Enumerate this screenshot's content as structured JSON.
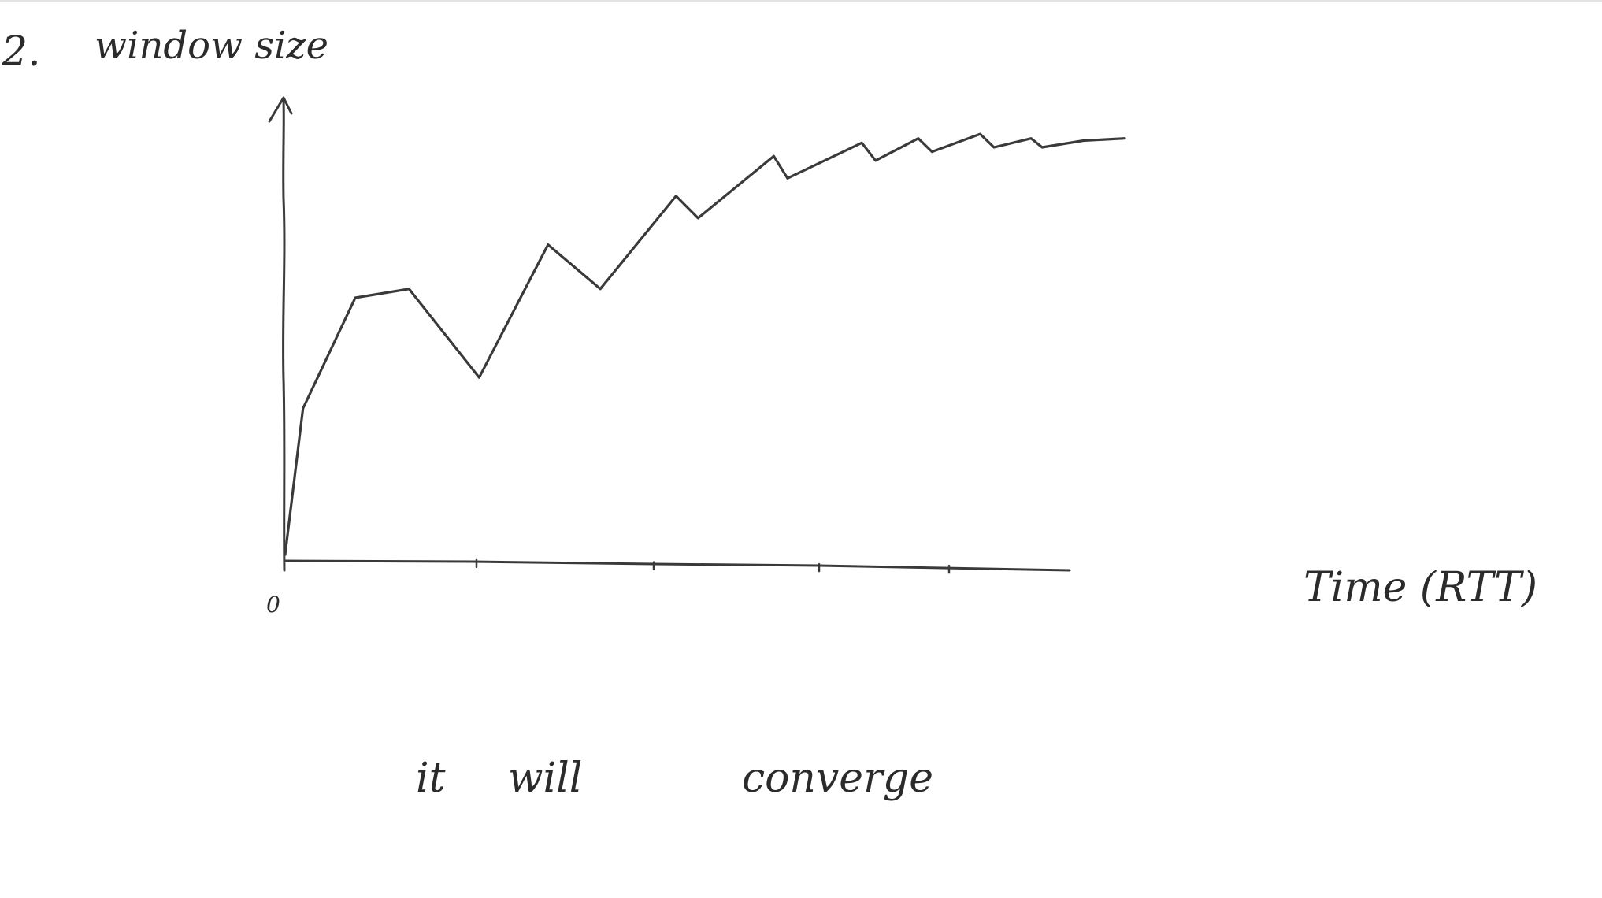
{
  "page": {
    "question_number": "2.",
    "note_words": [
      "it",
      "will",
      "converge"
    ]
  },
  "chart_data": {
    "type": "line",
    "ylabel": "window size",
    "xlabel": "Time (RTT)",
    "origin_label": "0",
    "x_tick_count": 5,
    "grid": false,
    "series": [
      {
        "x": [
          0,
          1.3,
          5.1,
          9.0,
          14.1,
          19.1,
          22.9,
          28.4,
          30.0,
          35.5,
          36.5,
          41.9,
          42.9,
          46.0,
          47.0,
          50.5,
          51.5,
          54.2,
          55.0,
          58.0,
          61.0
        ],
        "y": [
          0,
          3.3,
          5.8,
          6.0,
          4.0,
          7.0,
          6.0,
          8.1,
          7.6,
          9.0,
          8.5,
          9.3,
          8.9,
          9.4,
          9.1,
          9.5,
          9.2,
          9.4,
          9.2,
          9.35,
          9.4
        ]
      }
    ],
    "xlim": [
      0,
      61
    ],
    "ylim": [
      0,
      10
    ]
  }
}
